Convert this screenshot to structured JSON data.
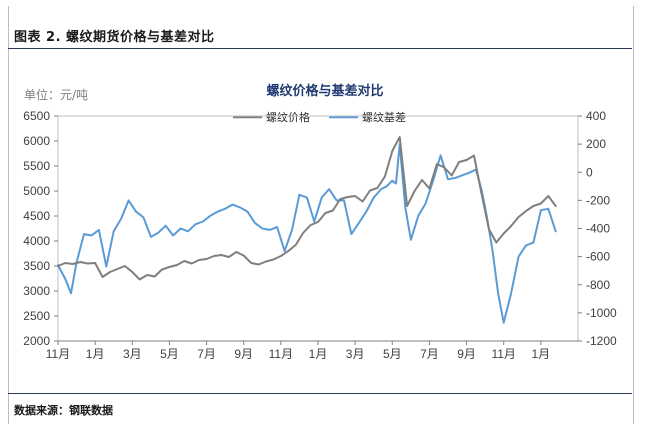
{
  "figure": {
    "caption": "图表 2.   螺纹期货价格与基差对比",
    "source": "数据来源：钢联数据"
  },
  "chart_data": {
    "type": "line",
    "title": "螺纹价格与基差对比",
    "unit_label": "单位：元/吨",
    "x_tick_labels": [
      "11月",
      "1月",
      "3月",
      "5月",
      "7月",
      "9月",
      "11月",
      "1月",
      "3月",
      "5月",
      "7月",
      "9月",
      "11月",
      "1月"
    ],
    "y_left": {
      "ylim": [
        2000,
        6500
      ],
      "ticks": [
        2000,
        2500,
        3000,
        3500,
        4000,
        4500,
        5000,
        5500,
        6000,
        6500
      ]
    },
    "y_right": {
      "ylim": [
        -1200,
        400
      ],
      "ticks": [
        -1200,
        -1000,
        -800,
        -600,
        -400,
        -200,
        0,
        200,
        400
      ]
    },
    "legend": {
      "position": "top-center"
    },
    "series": [
      {
        "name": "螺纹价格",
        "axis": "left",
        "color": "#7f7f7f",
        "x": [
          0,
          0.2,
          0.4,
          0.6,
          0.8,
          1.0,
          1.2,
          1.4,
          1.6,
          1.8,
          2.0,
          2.2,
          2.4,
          2.6,
          2.8,
          3.0,
          3.2,
          3.4,
          3.6,
          3.8,
          4.0,
          4.2,
          4.4,
          4.6,
          4.8,
          5.0,
          5.2,
          5.4,
          5.6,
          5.8,
          6.0,
          6.2,
          6.4,
          6.6,
          6.8,
          7.0,
          7.2,
          7.4,
          7.6,
          7.8,
          8.0,
          8.2,
          8.4,
          8.6,
          8.8,
          9.0,
          9.2,
          9.4,
          9.6,
          9.8,
          10.0,
          10.2,
          10.4,
          10.6,
          10.8,
          11.0,
          11.2,
          11.4,
          11.6,
          11.8,
          12.0,
          12.2,
          12.4,
          12.6,
          12.8,
          13.0,
          13.2,
          13.4
        ],
        "y": [
          3500,
          3560,
          3540,
          3580,
          3550,
          3560,
          3280,
          3380,
          3440,
          3500,
          3380,
          3230,
          3320,
          3290,
          3430,
          3480,
          3520,
          3600,
          3550,
          3620,
          3640,
          3700,
          3720,
          3680,
          3780,
          3710,
          3560,
          3530,
          3590,
          3630,
          3700,
          3800,
          3920,
          4160,
          4320,
          4380,
          4560,
          4610,
          4840,
          4880,
          4900,
          4790,
          5010,
          5060,
          5290,
          5800,
          6080,
          4700,
          5000,
          5220,
          5050,
          5540,
          5470,
          5310,
          5580,
          5620,
          5710,
          4960,
          4240,
          3970,
          4150,
          4300,
          4480,
          4600,
          4700,
          4750,
          4900,
          4700
        ]
      },
      {
        "name": "螺纹基差",
        "axis": "right",
        "color": "#5b9bd5",
        "x": [
          0,
          0.2,
          0.35,
          0.5,
          0.7,
          0.9,
          1.1,
          1.3,
          1.5,
          1.7,
          1.9,
          2.1,
          2.3,
          2.5,
          2.7,
          2.9,
          3.1,
          3.3,
          3.5,
          3.7,
          3.9,
          4.1,
          4.3,
          4.5,
          4.7,
          4.9,
          5.1,
          5.3,
          5.5,
          5.7,
          5.9,
          6.1,
          6.3,
          6.5,
          6.7,
          6.9,
          7.1,
          7.3,
          7.5,
          7.7,
          7.9,
          8.1,
          8.3,
          8.5,
          8.7,
          8.85,
          9.0,
          9.1,
          9.2,
          9.35,
          9.5,
          9.7,
          9.9,
          10.1,
          10.3,
          10.5,
          10.7,
          10.9,
          11.1,
          11.25,
          11.4,
          11.55,
          11.7,
          11.85,
          12.0,
          12.2,
          12.4,
          12.6,
          12.8,
          13.0,
          13.2,
          13.4
        ],
        "y": [
          -660,
          -760,
          -860,
          -640,
          -440,
          -450,
          -410,
          -670,
          -420,
          -330,
          -200,
          -280,
          -320,
          -460,
          -430,
          -380,
          -450,
          -400,
          -420,
          -370,
          -350,
          -310,
          -280,
          -260,
          -230,
          -250,
          -280,
          -360,
          -400,
          -410,
          -390,
          -560,
          -410,
          -160,
          -180,
          -350,
          -180,
          -120,
          -200,
          -200,
          -440,
          -360,
          -280,
          -180,
          -120,
          -100,
          -60,
          -80,
          200,
          -250,
          -480,
          -310,
          -220,
          -60,
          120,
          -50,
          -40,
          -20,
          0,
          20,
          -120,
          -320,
          -560,
          -860,
          -1070,
          -860,
          -600,
          -520,
          -500,
          -270,
          -260,
          -420
        ]
      }
    ]
  }
}
